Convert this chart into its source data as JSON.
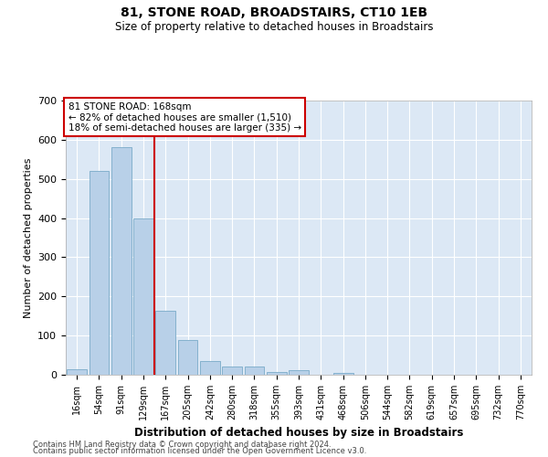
{
  "title1": "81, STONE ROAD, BROADSTAIRS, CT10 1EB",
  "title2": "Size of property relative to detached houses in Broadstairs",
  "xlabel": "Distribution of detached houses by size in Broadstairs",
  "ylabel": "Number of detached properties",
  "bar_labels": [
    "16sqm",
    "54sqm",
    "91sqm",
    "129sqm",
    "167sqm",
    "205sqm",
    "242sqm",
    "280sqm",
    "318sqm",
    "355sqm",
    "393sqm",
    "431sqm",
    "468sqm",
    "506sqm",
    "544sqm",
    "582sqm",
    "619sqm",
    "657sqm",
    "695sqm",
    "732sqm",
    "770sqm"
  ],
  "bar_values": [
    13,
    520,
    580,
    400,
    163,
    88,
    35,
    22,
    22,
    7,
    12,
    0,
    5,
    0,
    0,
    0,
    0,
    0,
    0,
    0,
    0
  ],
  "bar_color": "#b8d0e8",
  "bar_edge_color": "#7aaac8",
  "grid_color": "#dce8f5",
  "vline_x": 3.5,
  "vline_color": "#cc0000",
  "annotation_text": "81 STONE ROAD: 168sqm\n← 82% of detached houses are smaller (1,510)\n18% of semi-detached houses are larger (335) →",
  "annotation_box_color": "white",
  "annotation_box_edge_color": "#cc0000",
  "ylim": [
    0,
    700
  ],
  "yticks": [
    0,
    100,
    200,
    300,
    400,
    500,
    600,
    700
  ],
  "footer1": "Contains HM Land Registry data © Crown copyright and database right 2024.",
  "footer2": "Contains public sector information licensed under the Open Government Licence v3.0."
}
